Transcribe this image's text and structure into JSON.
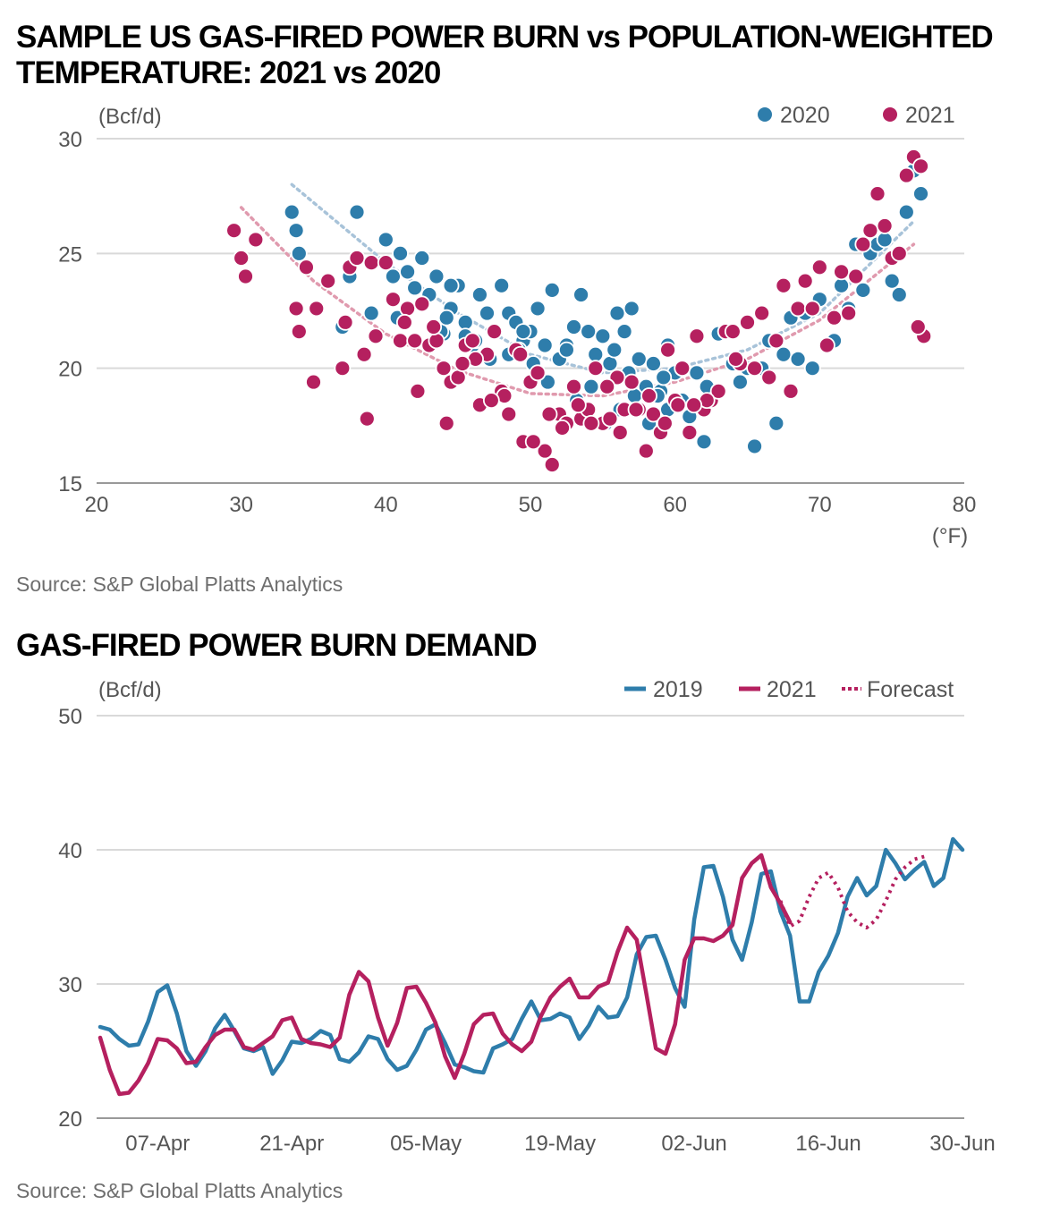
{
  "chart1": {
    "title_line1": "SAMPLE US GAS-FIRED POWER BURN vs POPULATION-WEIGHTED",
    "title_line2": "TEMPERATURE: 2021 vs 2020",
    "source": "Source: S&P Global Platts Analytics"
  },
  "chart2": {
    "title": "GAS-FIRED POWER BURN DEMAND",
    "source": "Source: S&P Global Platts Analytics"
  },
  "chart_data": [
    {
      "type": "scatter",
      "title": "SAMPLE US GAS-FIRED POWER BURN vs POPULATION-WEIGHTED TEMPERATURE: 2021 vs 2020",
      "ylabel": "(Bcf/d)",
      "xlabel": "(°F)",
      "xlim": [
        20,
        80
      ],
      "ylim": [
        15,
        30
      ],
      "xticks": [
        20,
        30,
        40,
        50,
        60,
        70,
        80
      ],
      "yticks": [
        15,
        20,
        25,
        30
      ],
      "grid": true,
      "legend": "top-right",
      "colors": {
        "2020": "#2e7dab",
        "2021": "#b5205f"
      },
      "trend_colors": {
        "2020": "#a8c3d9",
        "2021": "#e09aae"
      },
      "series": [
        {
          "name": "2020",
          "x": [
            33.5,
            33.8,
            34,
            37,
            37.5,
            38,
            39,
            40,
            40.5,
            40.8,
            41,
            41.5,
            42,
            42.5,
            43,
            43.5,
            44,
            44.5,
            45,
            45.5,
            46,
            46.5,
            47,
            47.5,
            48,
            48.5,
            49,
            49.5,
            50,
            50.5,
            51,
            51.5,
            52,
            52.5,
            53,
            53.5,
            54,
            54.5,
            55,
            55.5,
            56,
            56.5,
            57,
            57.5,
            58,
            58.5,
            59,
            59.5,
            60,
            60.5,
            61,
            61.5,
            62,
            62.5,
            63,
            63.5,
            64,
            64.5,
            65,
            65.5,
            66,
            66.5,
            67,
            67.5,
            68,
            68.5,
            69,
            69.5,
            70,
            70.5,
            71,
            71.5,
            72,
            72.5,
            73,
            73.5,
            74,
            74.5,
            75,
            75.5,
            76,
            76.5,
            77,
            43.8,
            44.2,
            46.2,
            47.2,
            49.2,
            50.2,
            51.2,
            53.2,
            54.2,
            55.2,
            56.2,
            57.2,
            58.2,
            59.2,
            60.2,
            44.5,
            48.5,
            52.5,
            56.8,
            58.8,
            62.2,
            45.5,
            49.5,
            55.8,
            59.5
          ],
          "y": [
            26.8,
            26,
            25,
            21.8,
            24,
            26.8,
            22.4,
            25.6,
            24,
            22.2,
            25,
            24.2,
            23.5,
            24.8,
            23.2,
            24,
            21.5,
            22.6,
            23.6,
            22,
            21,
            23.2,
            22.4,
            21.6,
            23.6,
            22.4,
            22,
            21.2,
            21.6,
            22.6,
            21,
            23.4,
            20.4,
            21,
            21.8,
            23.2,
            21.6,
            20.6,
            21.4,
            20.2,
            22.4,
            21.6,
            22.6,
            20.4,
            19.2,
            20.2,
            19,
            21,
            19.8,
            18.6,
            17.9,
            19.8,
            16.8,
            18.8,
            21.5,
            21.6,
            20.2,
            19.4,
            20,
            16.6,
            20,
            21.2,
            17.6,
            20.6,
            22.2,
            20.4,
            22.4,
            20,
            23,
            21,
            21.2,
            23.6,
            22.6,
            25.4,
            23.4,
            25,
            25.4,
            25.6,
            23.8,
            23.2,
            26.8,
            28.6,
            27.6,
            21.6,
            22.2,
            21.2,
            20.4,
            20.8,
            20.2,
            19.4,
            18.6,
            19.2,
            17.6,
            18.2,
            18.8,
            17.6,
            19.6,
            18.4,
            23.6,
            20.6,
            20.8,
            19.8,
            18.8,
            19.2,
            21.4,
            21.6,
            20.8,
            18.2
          ]
        },
        {
          "name": "2021",
          "x": [
            29.5,
            30,
            30.3,
            31,
            33.8,
            34,
            34.5,
            35,
            35.2,
            36,
            37,
            37.2,
            37.5,
            38,
            38.5,
            38.7,
            39,
            39.3,
            40,
            40.5,
            41,
            41.5,
            42,
            42.5,
            43,
            43.5,
            44,
            44.5,
            45,
            45.5,
            46,
            46.5,
            47,
            47.5,
            48,
            48.5,
            49,
            49.5,
            50,
            50.5,
            51,
            51.5,
            52,
            52.5,
            53,
            53.5,
            54,
            54.5,
            55,
            55.5,
            56,
            56.5,
            57,
            57.5,
            58,
            58.5,
            59,
            59.5,
            60,
            60.5,
            61,
            61.5,
            62,
            62.5,
            63,
            63.5,
            64,
            64.5,
            65,
            65.5,
            66,
            66.5,
            67,
            67.5,
            68,
            68.5,
            69,
            69.5,
            70,
            70.5,
            71,
            71.5,
            72,
            72.5,
            73,
            73.5,
            74,
            74.5,
            75,
            75.5,
            76,
            76.5,
            77,
            77.2,
            76.8,
            42.2,
            44.2,
            46.2,
            48.2,
            50.2,
            52.2,
            54.2,
            56.2,
            58.2,
            60.2,
            62.2,
            64.2,
            41.3,
            43.3,
            45.3,
            47.3,
            49.3,
            51.3,
            53.3,
            55.3,
            57.3,
            59.3,
            61.3
          ],
          "y": [
            26,
            24.8,
            24,
            25.6,
            22.6,
            21.6,
            24.4,
            19.4,
            22.6,
            23.8,
            20,
            22,
            24.4,
            24.8,
            20.6,
            17.8,
            24.6,
            21.4,
            24.6,
            23,
            21.2,
            22.6,
            21.2,
            22.8,
            21,
            21.2,
            20,
            19.4,
            19.6,
            21,
            21.2,
            18.4,
            20.6,
            21.6,
            19,
            18,
            20.8,
            16.8,
            19.4,
            19.8,
            16.4,
            15.8,
            18,
            17.6,
            19.2,
            17.8,
            18.2,
            20,
            17.6,
            17.8,
            19.6,
            18.2,
            19.4,
            18.2,
            16.4,
            18,
            17.2,
            20.8,
            18.6,
            20,
            17.2,
            21.4,
            18.2,
            18.6,
            19,
            21.6,
            21.6,
            20.2,
            22,
            20,
            22.4,
            19.6,
            21.2,
            23.6,
            19,
            22.6,
            23.8,
            22.6,
            24.4,
            21,
            22.2,
            24.2,
            22.4,
            24,
            25.4,
            26,
            27.6,
            26.2,
            24.8,
            25,
            28.4,
            29.2,
            28.8,
            21.4,
            21.8,
            19,
            17.6,
            20.4,
            18.8,
            16.8,
            17.4,
            17.6,
            17.2,
            18.8,
            18.4,
            18.6,
            20.4,
            22,
            21.8,
            20.2,
            18.6,
            20.6,
            18,
            18.4,
            19.2,
            18.2,
            17.6,
            18.4
          ]
        }
      ],
      "trend": [
        {
          "name": "2020",
          "x_range": [
            33.5,
            76.5
          ],
          "x": [
            33.5,
            40,
            45,
            50,
            55,
            60,
            65,
            70,
            76.5
          ],
          "y": [
            28,
            24.6,
            22.4,
            20.6,
            19.8,
            20,
            20.8,
            22.4,
            26.4
          ]
        },
        {
          "name": "2021",
          "x_range": [
            30,
            76.5
          ],
          "x": [
            30,
            35,
            40,
            45,
            50,
            55,
            60,
            65,
            70,
            76.5
          ],
          "y": [
            27,
            23.8,
            21.5,
            19.9,
            18.9,
            18.8,
            19.4,
            20.4,
            22.1,
            25.4
          ]
        }
      ]
    },
    {
      "type": "line",
      "title": "GAS-FIRED POWER BURN DEMAND",
      "ylabel": "(Bcf/d)",
      "ylim": [
        20,
        50
      ],
      "yticks": [
        20,
        30,
        40,
        50
      ],
      "categories": [
        "07-Apr",
        "21-Apr",
        "05-May",
        "19-May",
        "02-Jun",
        "16-Jun",
        "30-Jun"
      ],
      "grid": true,
      "legend": "top-right",
      "x_day_range": [
        1,
        91
      ],
      "colors": {
        "2019": "#2e7dab",
        "2021": "#b5205f",
        "Forecast": "#b5205f"
      },
      "series": [
        {
          "name": "2019",
          "x": [
            1,
            2,
            3,
            4,
            5,
            6,
            7,
            8,
            9,
            10,
            11,
            12,
            13,
            14,
            15,
            16,
            17,
            18,
            19,
            20,
            21,
            22,
            23,
            24,
            25,
            26,
            27,
            28,
            29,
            30,
            31,
            32,
            33,
            34,
            35,
            36,
            37,
            38,
            39,
            40,
            41,
            42,
            43,
            44,
            45,
            46,
            47,
            48,
            49,
            50,
            51,
            52,
            53,
            54,
            55,
            56,
            57,
            58,
            59,
            60,
            61,
            62,
            63,
            64,
            65,
            66,
            67,
            68,
            69,
            70,
            71,
            72,
            73,
            74,
            75,
            76,
            77,
            78,
            79,
            80,
            81,
            82,
            83,
            84,
            85,
            86,
            87,
            88,
            89,
            90,
            91
          ],
          "y": [
            26.8,
            26.6,
            25.9,
            25.4,
            25.5,
            27.2,
            29.4,
            29.9,
            27.8,
            25,
            23.9,
            25,
            26.7,
            27.7,
            26.5,
            25.2,
            25,
            25.3,
            23.3,
            24.3,
            25.7,
            25.6,
            25.9,
            26.5,
            26.2,
            24.4,
            24.2,
            24.9,
            26.1,
            25.9,
            24.4,
            23.6,
            23.9,
            25.1,
            26.6,
            27,
            25.6,
            24,
            23.8,
            23.5,
            23.4,
            25.2,
            25.5,
            25.9,
            27.4,
            28.7,
            27.3,
            27.4,
            27.8,
            27.5,
            25.9,
            26.9,
            28.3,
            27.5,
            27.6,
            29,
            32.2,
            33.5,
            33.6,
            31.8,
            29.7,
            28.3,
            34.8,
            38.7,
            38.8,
            36.5,
            33.3,
            31.8,
            34.6,
            38.2,
            38.4,
            35.4,
            33.6,
            28.7,
            28.7,
            30.9,
            32.1,
            33.8,
            36.5,
            37.9,
            36.6,
            37.3,
            40,
            39,
            37.8,
            38.5,
            39.1,
            37.3,
            37.9,
            40.8,
            40
          ]
        },
        {
          "name": "2021",
          "x": [
            1,
            2,
            3,
            4,
            5,
            6,
            7,
            8,
            9,
            10,
            11,
            12,
            13,
            14,
            15,
            16,
            17,
            18,
            19,
            20,
            21,
            22,
            23,
            24,
            25,
            26,
            27,
            28,
            29,
            30,
            31,
            32,
            33,
            34,
            35,
            36,
            37,
            38,
            39,
            40,
            41,
            42,
            43,
            44,
            45,
            46,
            47,
            48,
            49,
            50,
            51,
            52,
            53,
            54,
            55,
            56,
            57,
            58,
            59,
            60,
            61,
            62,
            63,
            64,
            65,
            66,
            67,
            68,
            69,
            70,
            71,
            72,
            73
          ],
          "y": [
            26,
            23.6,
            21.8,
            21.9,
            22.8,
            24.1,
            25.9,
            25.8,
            25.2,
            24.1,
            24.2,
            25.3,
            26.2,
            26.6,
            26.6,
            25.3,
            25.1,
            25.6,
            26.1,
            27.3,
            27.5,
            25.9,
            25.6,
            25.5,
            25.3,
            26,
            29.2,
            30.9,
            30.2,
            27.5,
            25.4,
            27.1,
            29.7,
            29.8,
            28.6,
            27.1,
            24.6,
            23,
            24.8,
            27,
            27.7,
            27.8,
            26.3,
            25.5,
            25,
            25.7,
            27.6,
            29,
            29.8,
            30.4,
            29,
            29,
            29.8,
            30.1,
            32.4,
            34.2,
            33.3,
            29.3,
            25.2,
            24.8,
            27,
            31.8,
            33.4,
            33.4,
            33.2,
            33.6,
            34.4,
            37.9,
            39,
            39.6,
            37.2,
            36,
            34.6
          ]
        },
        {
          "name": "Forecast",
          "dashed": true,
          "x": [
            72,
            73,
            74,
            75,
            76,
            77,
            78,
            79,
            80,
            81,
            82,
            83,
            84,
            85,
            86,
            87
          ],
          "y": [
            36.2,
            34.3,
            34.7,
            36.5,
            37.9,
            38.3,
            37.2,
            35.4,
            34.6,
            34.2,
            34.8,
            36.2,
            37.8,
            38.7,
            39.3,
            39.5
          ]
        }
      ]
    }
  ]
}
